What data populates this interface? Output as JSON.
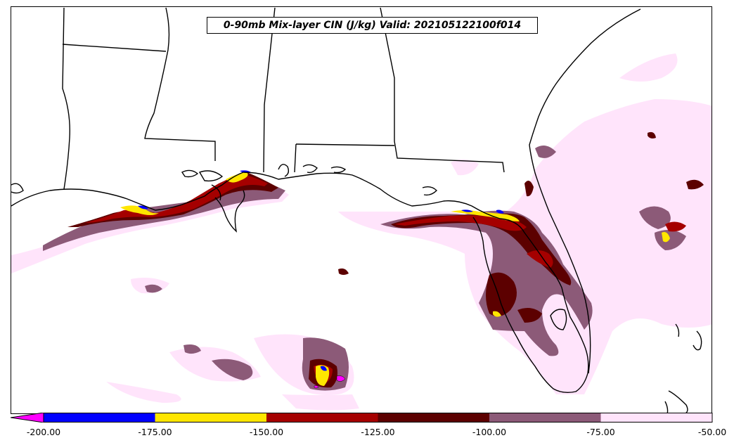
{
  "title": "0-90mb Mix-layer CIN (J/kg) Valid: 202105122100f014",
  "colorbar": {
    "ticks": [
      "-200.00",
      "-175.00",
      "-150.00",
      "-125.00",
      "-100.00",
      "-75.00",
      "-50.00"
    ],
    "extend_color": "#ff00ff",
    "bins": [
      {
        "from": -200,
        "to": -175,
        "color": "#0000ff"
      },
      {
        "from": -175,
        "to": -150,
        "color": "#ffe600"
      },
      {
        "from": -150,
        "to": -125,
        "color": "#a50000"
      },
      {
        "from": -125,
        "to": -100,
        "color": "#5c0000"
      },
      {
        "from": -100,
        "to": -75,
        "color": "#8c5a78"
      },
      {
        "from": -75,
        "to": -50,
        "color": "#ffe4fb"
      }
    ]
  }
}
